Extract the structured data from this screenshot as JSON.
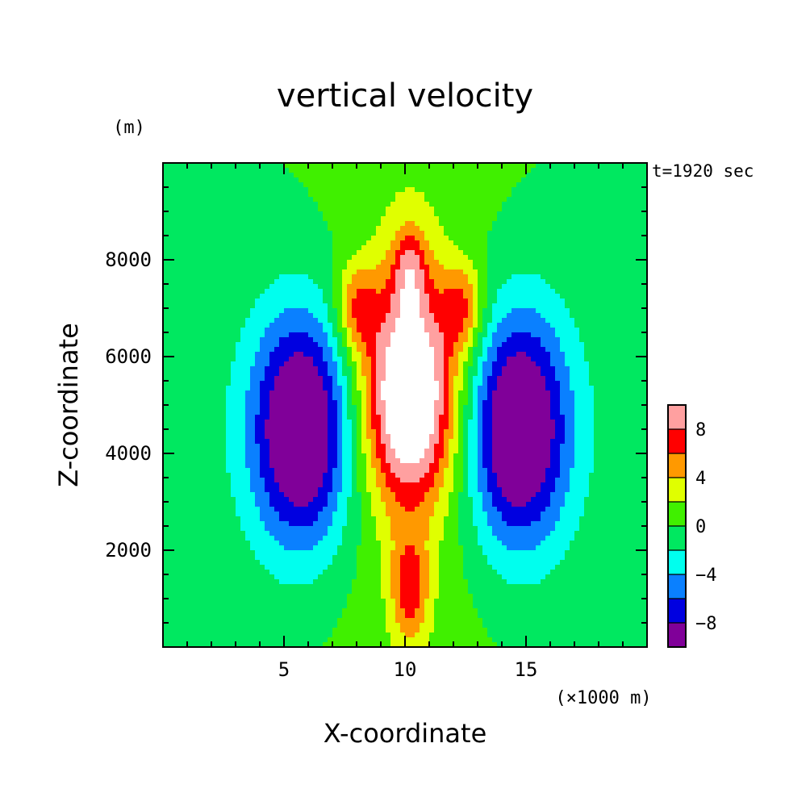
{
  "chart_data": {
    "type": "heatmap",
    "title": "vertical velocity",
    "time_label": "t=1920 sec",
    "xlabel": "X-coordinate",
    "ylabel": "Z-coordinate",
    "x_unit": "(×1000 m)",
    "y_unit": "(m)",
    "xlim": [
      0,
      20
    ],
    "ylim": [
      0,
      10000
    ],
    "xticks": [
      {
        "value": 5,
        "label": "5"
      },
      {
        "value": 10,
        "label": "10"
      },
      {
        "value": 15,
        "label": "15"
      }
    ],
    "yticks": [
      {
        "value": 2000,
        "label": "2000"
      },
      {
        "value": 4000,
        "label": "4000"
      },
      {
        "value": 6000,
        "label": "6000"
      },
      {
        "value": 8000,
        "label": "8000"
      }
    ],
    "colorbar": {
      "levels": [
        -10,
        -8,
        -6,
        -4,
        -2,
        0,
        2,
        4,
        6,
        8,
        10
      ],
      "colors": [
        "#800099",
        "#0000e0",
        "#0a80ff",
        "#00ffee",
        "#00e860",
        "#40f000",
        "#e0ff00",
        "#ff9900",
        "#ff0000",
        "#ffa0a0"
      ],
      "tick_labels": [
        {
          "value": -8,
          "label": "−8"
        },
        {
          "value": -4,
          "label": "−4"
        },
        {
          "value": 0,
          "label": "0"
        },
        {
          "value": 4,
          "label": "4"
        },
        {
          "value": 8,
          "label": "8"
        }
      ],
      "overflow_color": "#ffffff"
    },
    "field": {
      "description_center_x": 10.2,
      "updraft": {
        "x_center": 10.2,
        "z_center": 5000,
        "peak": 14,
        "top_z": 8800
      },
      "downdrafts": [
        {
          "x_center": 5.7,
          "z_center": 4500,
          "peak": -10.5
        },
        {
          "x_center": 14.7,
          "z_center": 4500,
          "peak": -10.5
        }
      ]
    }
  }
}
